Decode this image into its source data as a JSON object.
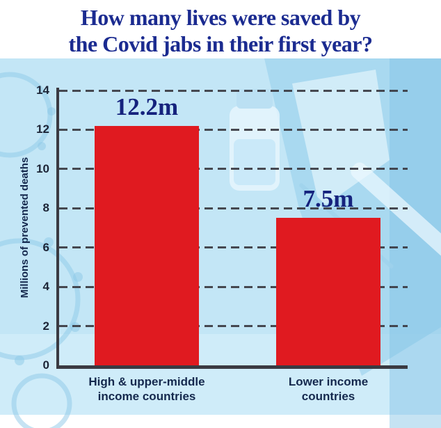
{
  "title": {
    "line1": "How many lives were saved by",
    "line2": "the Covid jabs in their first year?"
  },
  "chart_data": {
    "type": "bar",
    "title": "How many lives were saved by the Covid jabs in their first year?",
    "ylabel": "Millions of prevented deaths",
    "xlabel": "",
    "ylim": [
      0,
      14
    ],
    "yticks": [
      0,
      2,
      4,
      6,
      8,
      10,
      12,
      14
    ],
    "grid": "dashed-horizontal",
    "legend": "none",
    "categories": [
      [
        "High & upper-middle",
        "income countries"
      ],
      [
        "Lower income",
        "countries"
      ]
    ],
    "values": [
      12.2,
      7.5
    ],
    "bar_labels": [
      "12.2m",
      "7.5m"
    ]
  },
  "colors": {
    "title": "#1b2b90",
    "value_label": "#15227d",
    "bar": "#e01a20",
    "axis": "#3a3a42",
    "tick_label": "#1c2436",
    "category_label": "#15294e",
    "background": "#c3e6f6"
  }
}
